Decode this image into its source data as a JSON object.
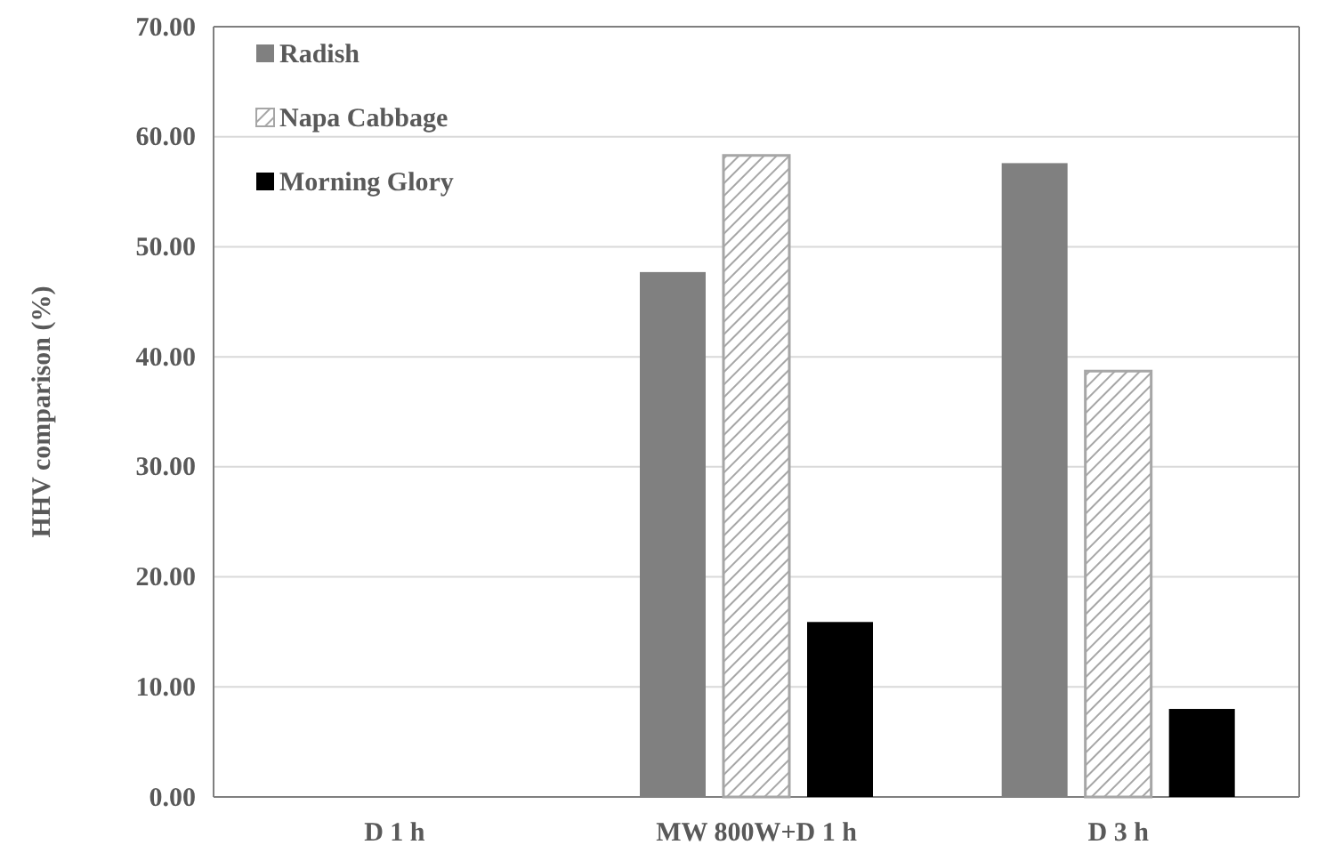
{
  "chart_data": {
    "type": "bar",
    "ylabel": "HHV comparison (%)",
    "categories": [
      "D 1 h",
      "MW 800W+D 1 h",
      "D 3 h"
    ],
    "series": [
      {
        "name": "Radish",
        "color": "#808080",
        "values": [
          null,
          47.7,
          57.6
        ]
      },
      {
        "name": "Napa Cabbage",
        "color": "#a6a6a6",
        "values": [
          null,
          58.3,
          38.7
        ]
      },
      {
        "name": "Morning Glory",
        "color": "#000000",
        "values": [
          null,
          15.9,
          8.0
        ]
      }
    ],
    "ylim": [
      0,
      70
    ],
    "yticks": [
      {
        "value": 0,
        "label": "0.00"
      },
      {
        "value": 10,
        "label": "10.00"
      },
      {
        "value": 20,
        "label": "20.00"
      },
      {
        "value": 30,
        "label": "30.00"
      },
      {
        "value": 40,
        "label": "40.00"
      },
      {
        "value": 50,
        "label": "50.00"
      },
      {
        "value": 60,
        "label": "60.00"
      },
      {
        "value": 70,
        "label": "70.00"
      }
    ],
    "grid": "y",
    "legend": "top left"
  }
}
